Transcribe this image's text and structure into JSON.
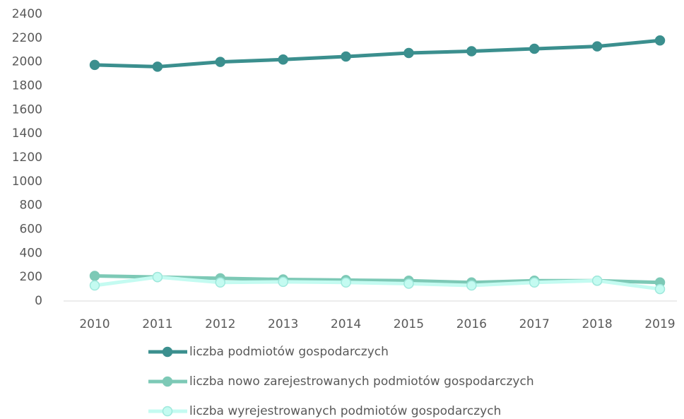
{
  "chart_data": {
    "type": "line",
    "categories": [
      "2010",
      "2011",
      "2012",
      "2013",
      "2014",
      "2015",
      "2016",
      "2017",
      "2018",
      "2019"
    ],
    "series": [
      {
        "name": "liczba podmiotów gospodarczych",
        "color": "#3b8f8e",
        "values": [
          1975,
          1960,
          2000,
          2020,
          2045,
          2075,
          2090,
          2110,
          2130,
          2180
        ]
      },
      {
        "name": "liczba nowo zarejestrowanych podmiotów gospodarczych",
        "color": "#7dc9b6",
        "values": [
          210,
          200,
          190,
          180,
          175,
          170,
          155,
          170,
          170,
          155
        ]
      },
      {
        "name": "liczba wyrejestrowanych podmiotów gospodarczych",
        "color": "#c4fbf1",
        "values": [
          130,
          200,
          155,
          160,
          155,
          145,
          130,
          155,
          170,
          100
        ]
      }
    ],
    "ylim": [
      0,
      2400
    ],
    "yticks": [
      0,
      200,
      400,
      600,
      800,
      1000,
      1200,
      1400,
      1600,
      1800,
      2000,
      2200,
      2400
    ],
    "grid": false,
    "legend": "bottom"
  }
}
